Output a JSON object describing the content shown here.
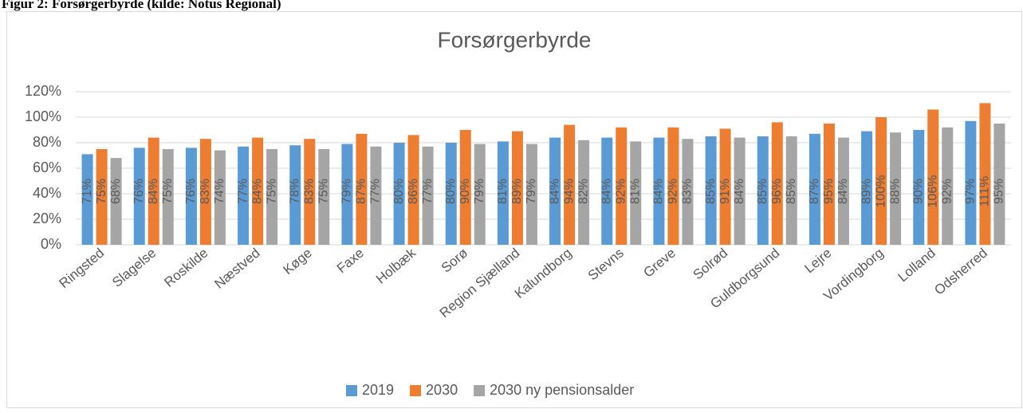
{
  "heading": "Figur 2: Forsørgerbyrde (kilde: Notus Regional)",
  "chart_data": {
    "type": "bar",
    "title": "Forsørgerbyrde",
    "categories": [
      "Ringsted",
      "Slagelse",
      "Roskilde",
      "Næstved",
      "Køge",
      "Faxe",
      "Holbæk",
      "Sorø",
      "Region Sjælland",
      "Kalundborg",
      "Stevns",
      "Greve",
      "Solrød",
      "Guldborgsund",
      "Lejre",
      "Vordingborg",
      "Lolland",
      "Odsherred"
    ],
    "series": [
      {
        "name": "2019",
        "color": "#5b9bd5",
        "values": [
          71,
          76,
          76,
          77,
          78,
          79,
          80,
          80,
          81,
          84,
          84,
          84,
          85,
          85,
          87,
          89,
          90,
          97
        ],
        "value_labels": [
          "71%",
          "76%",
          "76%",
          "77%",
          "78%",
          "79%",
          "80%",
          "80%",
          "81%",
          "84%",
          "84%",
          "84%",
          "85%",
          "85%",
          "87%",
          "89%",
          "90%",
          "97%"
        ]
      },
      {
        "name": "2030",
        "color": "#ed7d31",
        "values": [
          75,
          84,
          83,
          84,
          83,
          87,
          86,
          90,
          89,
          94,
          92,
          92,
          91,
          96,
          95,
          100,
          106,
          111
        ],
        "value_labels": [
          "75%",
          "84%",
          "83%",
          "84%",
          "83%",
          "87%",
          "86%",
          "90%",
          "89%",
          "94%",
          "92%",
          "92%",
          "91%",
          "96%",
          "95%",
          "100%",
          "106%",
          "111%"
        ]
      },
      {
        "name": "2030 ny pensionsalder",
        "color": "#a5a5a5",
        "values": [
          68,
          75,
          74,
          75,
          75,
          77,
          77,
          79,
          79,
          82,
          81,
          83,
          84,
          85,
          84,
          88,
          92,
          95
        ],
        "value_labels": [
          "68%",
          "75%",
          "74%",
          "75%",
          "75%",
          "77%",
          "77%",
          "79%",
          "79%",
          "82%",
          "81%",
          "83%",
          "84%",
          "85%",
          "84%",
          "88%",
          "92%",
          "95%"
        ]
      }
    ],
    "ylim": [
      0,
      120
    ],
    "yticks": [
      {
        "value": 0,
        "label": "0%"
      },
      {
        "value": 20,
        "label": "20%"
      },
      {
        "value": 40,
        "label": "40%"
      },
      {
        "value": 60,
        "label": "60%"
      },
      {
        "value": 80,
        "label": "80%"
      },
      {
        "value": 100,
        "label": "100%"
      },
      {
        "value": 120,
        "label": "120%"
      }
    ],
    "grid": true,
    "legend": "bottom"
  }
}
